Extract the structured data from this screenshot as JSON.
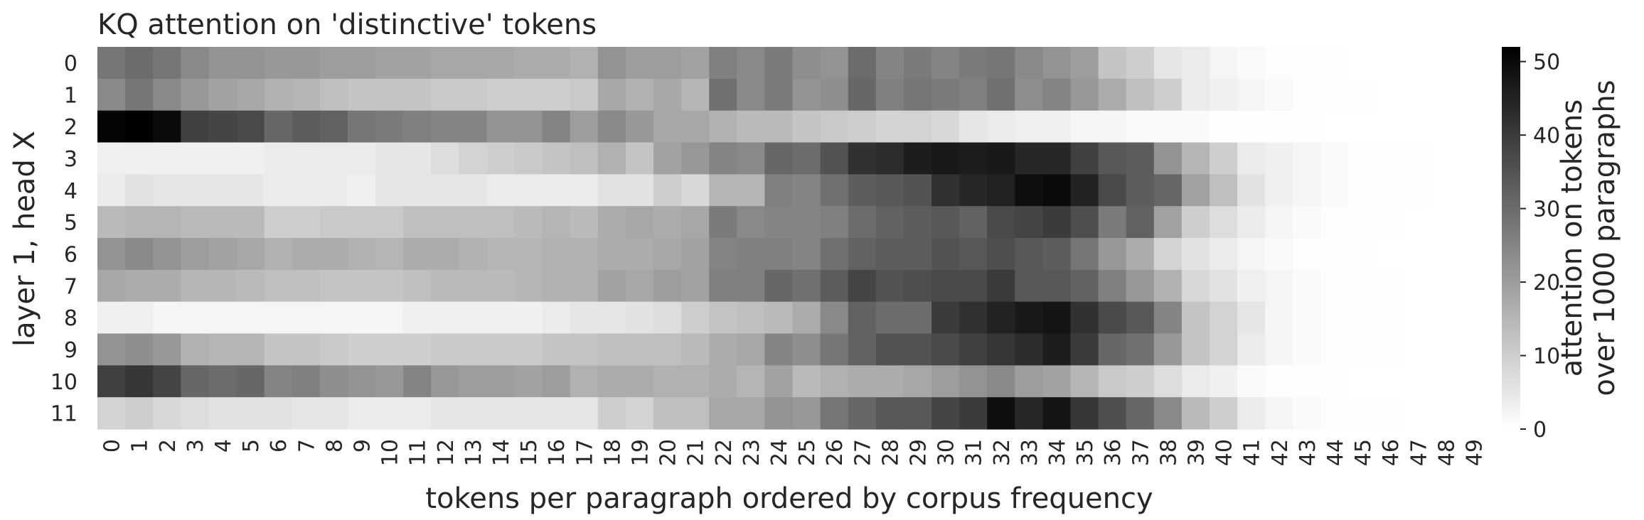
{
  "chart_data": {
    "type": "heatmap",
    "title": "KQ attention on 'distinctive' tokens",
    "xlabel": "tokens per paragraph ordered by corpus frequency",
    "ylabel": "layer 1, head X",
    "colorbar_label_lines": [
      "attention on tokens",
      "over 1000 paragraphs"
    ],
    "colorbar_ticks": [
      0,
      10,
      20,
      30,
      40,
      50
    ],
    "vmin": 0,
    "vmax": 52,
    "colormap": "Greys",
    "color_low": "#ffffff",
    "color_high": "#000000",
    "rows": [
      "0",
      "1",
      "2",
      "3",
      "4",
      "5",
      "6",
      "7",
      "8",
      "9",
      "10",
      "11"
    ],
    "columns": [
      "0",
      "1",
      "2",
      "3",
      "4",
      "5",
      "6",
      "7",
      "8",
      "9",
      "10",
      "11",
      "12",
      "13",
      "14",
      "15",
      "16",
      "17",
      "18",
      "19",
      "20",
      "21",
      "22",
      "23",
      "24",
      "25",
      "26",
      "27",
      "28",
      "29",
      "30",
      "31",
      "32",
      "33",
      "34",
      "35",
      "36",
      "37",
      "38",
      "39",
      "40",
      "41",
      "42",
      "43",
      "44",
      "45",
      "46",
      "47",
      "48",
      "49"
    ],
    "values": [
      [
        28,
        30,
        28,
        24,
        22,
        22,
        21,
        21,
        20,
        20,
        19,
        19,
        18,
        18,
        18,
        17,
        17,
        16,
        22,
        20,
        20,
        19,
        26,
        24,
        27,
        23,
        22,
        30,
        25,
        27,
        25,
        27,
        28,
        24,
        22,
        20,
        12,
        10,
        5,
        4,
        2,
        1,
        0.5,
        0.3,
        0.2,
        0.1,
        0.1,
        0.1,
        0.1,
        0.1
      ],
      [
        24,
        28,
        24,
        21,
        19,
        18,
        16,
        15,
        13,
        12,
        12,
        12,
        11,
        11,
        10,
        10,
        10,
        11,
        18,
        16,
        18,
        15,
        29,
        24,
        27,
        22,
        23,
        31,
        26,
        28,
        27,
        26,
        29,
        23,
        25,
        21,
        17,
        13,
        10,
        4,
        3,
        2,
        1,
        0.5,
        0.3,
        0.2,
        0.1,
        0.1,
        0.1,
        0.1
      ],
      [
        51,
        52,
        50,
        39,
        38,
        37,
        31,
        33,
        32,
        28,
        27,
        26,
        25,
        25,
        22,
        22,
        25,
        20,
        24,
        21,
        18,
        18,
        16,
        14,
        14,
        12,
        11,
        10,
        9,
        9,
        8,
        5,
        4,
        3,
        3,
        2,
        2,
        1,
        1,
        1,
        0.5,
        0.4,
        0.3,
        0.2,
        0.1,
        0.1,
        0.1,
        0.1,
        0.1,
        0.1
      ],
      [
        3,
        3,
        3,
        3,
        3,
        3,
        4,
        4,
        4,
        4,
        5,
        5,
        7,
        9,
        10,
        11,
        12,
        13,
        16,
        12,
        19,
        21,
        25,
        24,
        31,
        30,
        35,
        42,
        43,
        46,
        47,
        46,
        47,
        44,
        44,
        39,
        34,
        33,
        22,
        15,
        10,
        4,
        3,
        2,
        1,
        0.5,
        0.3,
        0.2,
        0.1,
        0.1
      ],
      [
        4,
        6,
        5,
        5,
        5,
        5,
        4,
        4,
        4,
        3,
        5,
        5,
        5,
        5,
        4,
        4,
        4,
        4,
        6,
        6,
        10,
        8,
        15,
        15,
        26,
        25,
        29,
        33,
        34,
        35,
        42,
        44,
        45,
        49,
        50,
        45,
        37,
        33,
        31,
        19,
        13,
        6,
        3,
        2,
        1,
        0.5,
        0.3,
        0.2,
        0.1,
        0.1
      ],
      [
        14,
        15,
        15,
        14,
        14,
        14,
        10,
        10,
        11,
        11,
        11,
        13,
        13,
        13,
        13,
        14,
        15,
        14,
        17,
        18,
        17,
        18,
        27,
        24,
        25,
        25,
        26,
        30,
        32,
        33,
        34,
        32,
        37,
        38,
        40,
        36,
        27,
        32,
        19,
        10,
        7,
        4,
        2,
        1,
        0.5,
        0.3,
        0.2,
        0.1,
        0.1,
        0.1
      ],
      [
        22,
        24,
        22,
        20,
        19,
        18,
        16,
        17,
        17,
        16,
        15,
        17,
        17,
        16,
        15,
        15,
        16,
        16,
        17,
        17,
        18,
        19,
        25,
        26,
        26,
        25,
        29,
        32,
        33,
        33,
        35,
        34,
        36,
        34,
        33,
        28,
        21,
        17,
        9,
        6,
        4,
        2,
        1,
        0.5,
        0.3,
        0.2,
        0.1,
        0.1,
        0.1,
        0.1
      ],
      [
        18,
        17,
        17,
        15,
        15,
        14,
        13,
        13,
        12,
        12,
        12,
        13,
        14,
        14,
        14,
        15,
        16,
        16,
        19,
        18,
        20,
        19,
        26,
        26,
        31,
        29,
        33,
        38,
        35,
        36,
        37,
        37,
        40,
        34,
        34,
        32,
        26,
        21,
        16,
        8,
        6,
        3,
        2,
        1,
        0.5,
        0.3,
        0.2,
        0.1,
        0.1,
        0.1
      ],
      [
        3,
        3,
        2,
        2,
        2,
        2,
        2,
        2,
        2,
        2,
        2,
        3,
        3,
        3,
        3,
        3,
        4,
        5,
        5,
        6,
        7,
        10,
        12,
        13,
        14,
        17,
        24,
        32,
        30,
        30,
        40,
        42,
        45,
        47,
        48,
        42,
        37,
        34,
        25,
        12,
        9,
        5,
        2,
        1,
        0.5,
        0.3,
        0.2,
        0.1,
        0.1,
        0.1
      ],
      [
        22,
        23,
        21,
        16,
        15,
        15,
        12,
        12,
        11,
        10,
        10,
        10,
        11,
        11,
        11,
        11,
        12,
        12,
        13,
        13,
        13,
        14,
        17,
        18,
        25,
        23,
        28,
        32,
        35,
        35,
        37,
        39,
        41,
        43,
        46,
        40,
        31,
        29,
        21,
        12,
        9,
        4,
        2,
        1,
        0.5,
        0.3,
        0.2,
        0.1,
        0.1,
        0.1
      ],
      [
        39,
        41,
        38,
        31,
        30,
        31,
        25,
        26,
        23,
        22,
        21,
        25,
        21,
        20,
        20,
        19,
        20,
        16,
        17,
        17,
        16,
        16,
        17,
        15,
        19,
        14,
        16,
        17,
        17,
        18,
        20,
        22,
        24,
        20,
        19,
        15,
        11,
        10,
        7,
        4,
        3,
        1,
        0.5,
        0.3,
        0.2,
        0.1,
        0.1,
        0.1,
        0.1,
        0.1
      ],
      [
        9,
        10,
        8,
        7,
        6,
        6,
        6,
        5,
        5,
        4,
        4,
        4,
        5,
        5,
        5,
        5,
        5,
        5,
        10,
        9,
        13,
        13,
        18,
        18,
        22,
        21,
        28,
        31,
        34,
        34,
        38,
        40,
        49,
        44,
        48,
        41,
        36,
        31,
        24,
        14,
        10,
        4,
        2,
        1,
        0.5,
        0.3,
        0.2,
        0.1,
        0.1,
        0.1
      ]
    ]
  }
}
